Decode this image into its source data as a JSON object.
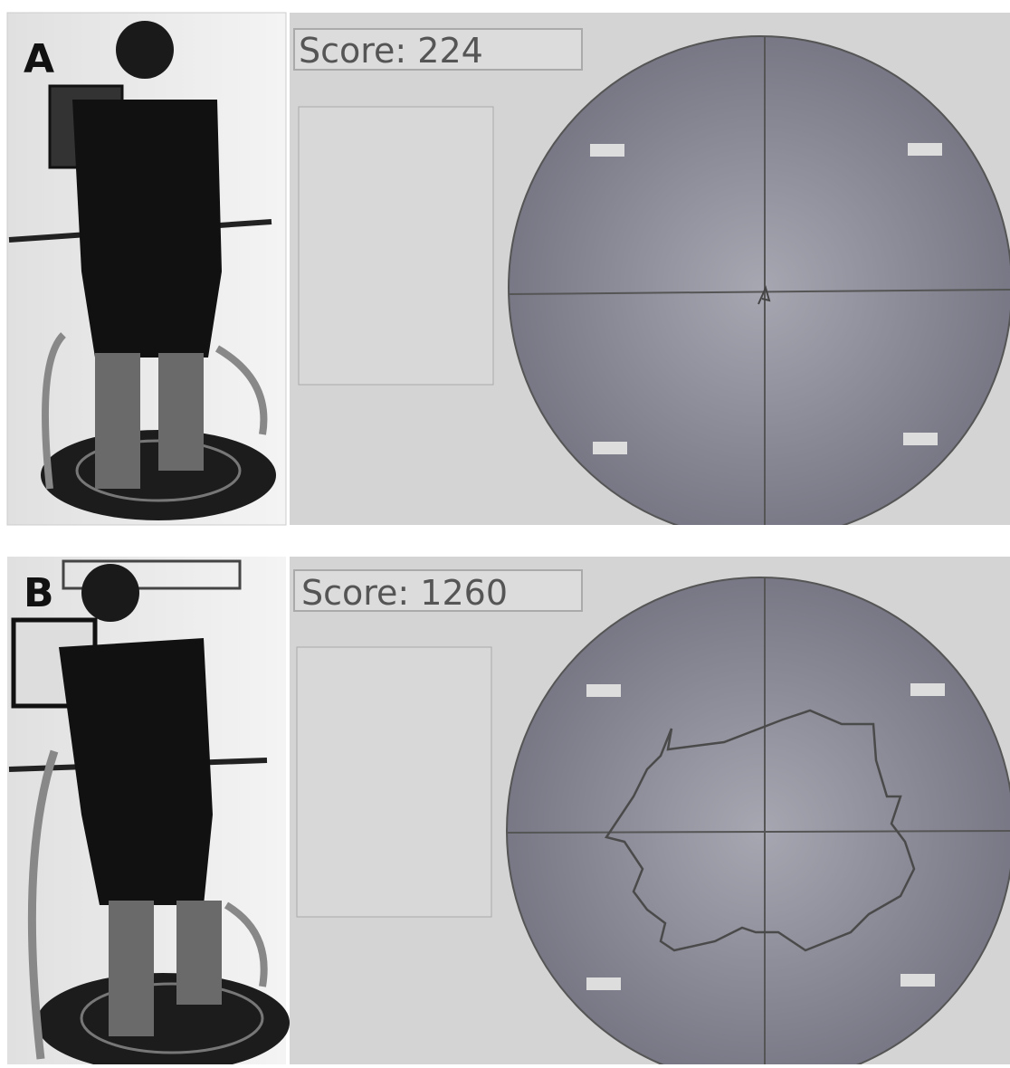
{
  "panels": [
    {
      "label": "A",
      "score": "Score: 224"
    },
    {
      "label": "B",
      "score": "Score: 1260"
    }
  ]
}
